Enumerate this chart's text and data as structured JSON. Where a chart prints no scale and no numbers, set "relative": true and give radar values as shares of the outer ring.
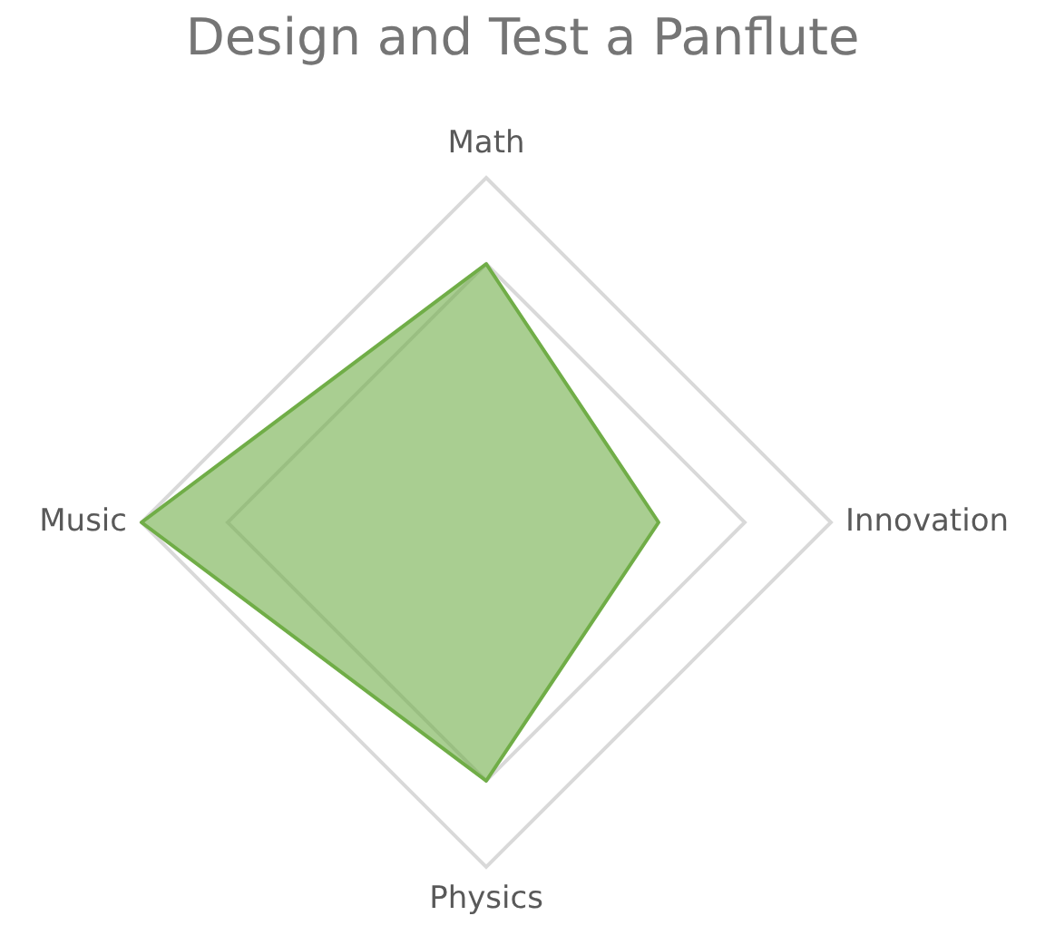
{
  "chart_data": {
    "type": "radar",
    "title": "Design and Test a Panflute",
    "categories": [
      "Math",
      "Innovation",
      "Physics",
      "Music"
    ],
    "relative": true,
    "grid": true,
    "legend": false,
    "marker": "none",
    "series": [
      {
        "color": "#70ad47",
        "values": [
          0.75,
          0.5,
          0.75,
          1
        ]
      }
    ]
  }
}
